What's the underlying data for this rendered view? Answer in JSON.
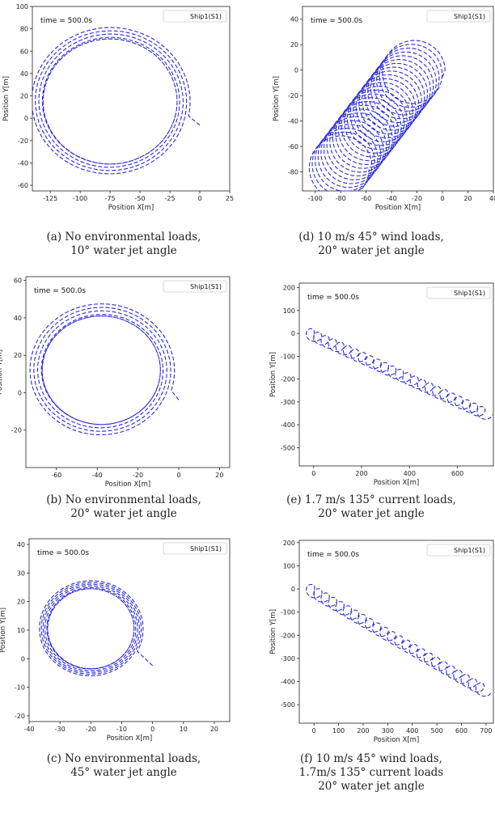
{
  "chart_data": [
    {
      "id": "a",
      "type": "line",
      "caption": [
        "(a) No environmental loads,",
        "10° water jet angle"
      ],
      "xlabel": "Position X[m]",
      "ylabel": "Position Y[m]",
      "xlim": [
        -140,
        25
      ],
      "ylim": [
        -65,
        100
      ],
      "xticks": [
        -125,
        -100,
        -75,
        -50,
        -25,
        0,
        25
      ],
      "yticks": [
        -60,
        -40,
        -20,
        0,
        20,
        40,
        60,
        80,
        100
      ],
      "time_label": "time = 500.0s",
      "series": [
        {
          "name": "Ship1(S1)",
          "color": "#2b2bd9"
        }
      ],
      "trajectory": {
        "start": [
          0,
          0
        ],
        "center": [
          -75,
          15
        ],
        "radius_inner": 56,
        "radius_outer": 67,
        "loops": 6,
        "drift_per_loop": [
          0,
          0
        ]
      }
    },
    {
      "id": "d",
      "type": "line",
      "caption": [
        "(d) 10 m/s 45° wind loads,",
        "20° water jet angle"
      ],
      "xlabel": "Position X[m]",
      "ylabel": "Position Y[m]",
      "xlim": [
        -110,
        40
      ],
      "ylim": [
        -95,
        50
      ],
      "xticks": [
        -100,
        -80,
        -60,
        -40,
        -20,
        0,
        20,
        40
      ],
      "yticks": [
        -80,
        -60,
        -40,
        -20,
        0,
        20,
        40
      ],
      "time_label": "time = 500.0s",
      "series": [
        {
          "name": "Ship1(S1)",
          "color": "#2b2bd9"
        }
      ],
      "trajectory": {
        "start": [
          0,
          0
        ],
        "center": [
          -22,
          0
        ],
        "radius_inner": 24,
        "radius_outer": 24,
        "loops": 26,
        "drift_per_loop": [
          -2.3,
          -3.0
        ]
      }
    },
    {
      "id": "b",
      "type": "line",
      "caption": [
        "(b) No environmental loads,",
        "20° water jet angle"
      ],
      "xlabel": "Position X[m]",
      "ylabel": "Position Y[m]",
      "xlim": [
        -75,
        25
      ],
      "ylim": [
        -40,
        62
      ],
      "xticks": [
        -60,
        -40,
        -20,
        0,
        20
      ],
      "yticks": [
        -20,
        0,
        20,
        40,
        60
      ],
      "time_label": "time = 500.0s",
      "series": [
        {
          "name": "Ship1(S1)",
          "color": "#2b2bd9"
        }
      ],
      "trajectory": {
        "start": [
          0,
          0
        ],
        "center": [
          -38,
          12
        ],
        "radius_inner": 29,
        "radius_outer": 36,
        "loops": 6,
        "drift_per_loop": [
          0,
          0
        ]
      }
    },
    {
      "id": "e",
      "type": "line",
      "caption": [
        "(e) 1.7 m/s 135° current loads,",
        "20° water jet angle"
      ],
      "xlabel": "Position X[m]",
      "ylabel": "Position Y[m]",
      "xlim": [
        -60,
        750
      ],
      "ylim": [
        -580,
        220
      ],
      "xticks": [
        0,
        200,
        400,
        600
      ],
      "yticks": [
        -500,
        -400,
        -300,
        -200,
        -100,
        0,
        100,
        200
      ],
      "time_label": "time = 500.0s",
      "series": [
        {
          "name": "Ship1(S1)",
          "color": "#2b2bd9"
        }
      ],
      "trajectory": {
        "start": [
          0,
          0
        ],
        "center": [
          -22,
          0
        ],
        "radius_inner": 24,
        "radius_outer": 24,
        "loops": 24,
        "drift_per_loop": [
          31,
          -14.8
        ]
      }
    },
    {
      "id": "c",
      "type": "line",
      "caption": [
        "(c) No environmental loads,",
        "45° water jet angle"
      ],
      "xlabel": "Position X[m]",
      "ylabel": "Position Y[m]",
      "xlim": [
        -40,
        25
      ],
      "ylim": [
        -22,
        42
      ],
      "xticks": [
        -40,
        -30,
        -20,
        -10,
        0,
        10,
        20
      ],
      "yticks": [
        -20,
        -10,
        0,
        10,
        20,
        30,
        40
      ],
      "time_label": "time = 500.0s",
      "series": [
        {
          "name": "Ship1(S1)",
          "color": "#2b2bd9"
        }
      ],
      "trajectory": {
        "start": [
          0,
          0
        ],
        "center": [
          -20,
          10.5
        ],
        "radius_inner": 14,
        "radius_outer": 17,
        "loops": 8,
        "drift_per_loop": [
          0,
          0
        ]
      }
    },
    {
      "id": "f",
      "type": "line",
      "caption": [
        "(f) 10 m/s 45° wind loads,",
        "1.7m/s 135° current loads",
        "20° water jet angle"
      ],
      "xlabel": "Position X[m]",
      "ylabel": "Position Y[m]",
      "xlim": [
        -60,
        730
      ],
      "ylim": [
        -580,
        210
      ],
      "xticks": [
        0,
        100,
        200,
        300,
        400,
        500,
        600,
        700
      ],
      "yticks": [
        -500,
        -400,
        -300,
        -200,
        -100,
        0,
        100,
        200
      ],
      "time_label": "time = 500.0s",
      "series": [
        {
          "name": "Ship1(S1)",
          "color": "#2b2bd9"
        }
      ],
      "trajectory": {
        "start": [
          0,
          0
        ],
        "center": [
          -22,
          0
        ],
        "radius_inner": 24,
        "radius_outer": 24,
        "loops": 24,
        "drift_per_loop": [
          30,
          -18.5
        ]
      }
    }
  ]
}
